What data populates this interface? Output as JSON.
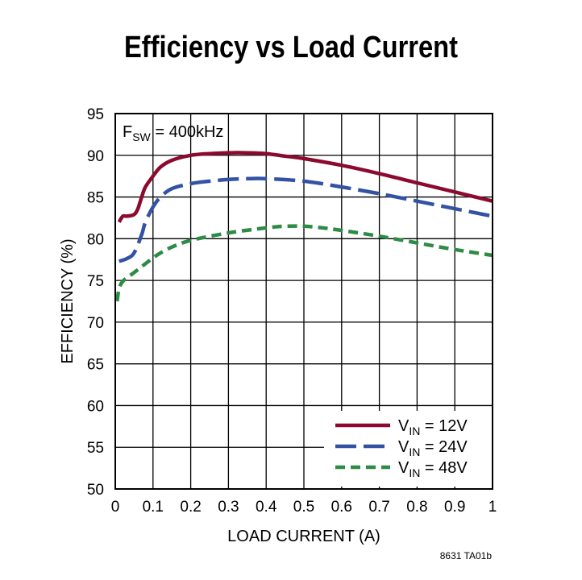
{
  "chart_data": {
    "type": "line",
    "title": "Efficiency vs Load Current",
    "xlabel": "LOAD CURRENT (A)",
    "ylabel": "EFFICIENCY (%)",
    "xlim": [
      0,
      1
    ],
    "ylim": [
      50,
      95
    ],
    "x_ticks": [
      "0",
      "0.1",
      "0.2",
      "0.3",
      "0.4",
      "0.5",
      "0.6",
      "0.7",
      "0.8",
      "0.9",
      "1"
    ],
    "y_ticks": [
      "95",
      "90",
      "85",
      "80",
      "75",
      "70",
      "65",
      "60",
      "55",
      "50"
    ],
    "grid": true,
    "annotation": {
      "main": "F",
      "sub": "SW",
      "rest": " = 400kHz"
    },
    "legend_position": "bottom-right",
    "series": [
      {
        "name": "VIN = 12V",
        "label_main": "V",
        "label_sub": "IN",
        "label_rest": " = 12V",
        "color": "#8b0a2e",
        "dash": "solid",
        "x": [
          0.01,
          0.02,
          0.03,
          0.05,
          0.06,
          0.07,
          0.08,
          0.1,
          0.12,
          0.15,
          0.2,
          0.25,
          0.3,
          0.35,
          0.4,
          0.45,
          0.5,
          0.6,
          0.7,
          0.8,
          0.9,
          1.0
        ],
        "values": [
          82.0,
          82.7,
          82.7,
          82.9,
          83.6,
          85.0,
          86.2,
          87.5,
          88.6,
          89.4,
          90.0,
          90.2,
          90.3,
          90.3,
          90.2,
          89.9,
          89.6,
          88.8,
          87.8,
          86.7,
          85.6,
          84.5
        ]
      },
      {
        "name": "VIN = 24V",
        "label_main": "V",
        "label_sub": "IN",
        "label_rest": " = 24V",
        "color": "#3352a4",
        "dash": "long-dash",
        "x": [
          0.01,
          0.03,
          0.05,
          0.07,
          0.08,
          0.1,
          0.12,
          0.15,
          0.2,
          0.25,
          0.3,
          0.35,
          0.4,
          0.5,
          0.6,
          0.7,
          0.8,
          0.9,
          1.0
        ],
        "values": [
          77.3,
          77.6,
          78.3,
          80.5,
          82.0,
          83.8,
          85.0,
          86.0,
          86.6,
          86.9,
          87.1,
          87.2,
          87.2,
          86.9,
          86.2,
          85.4,
          84.5,
          83.6,
          82.7
        ]
      },
      {
        "name": "VIN = 48V",
        "label_main": "V",
        "label_sub": "IN",
        "label_rest": " = 48V",
        "color": "#2e8b45",
        "dash": "short-dash",
        "x": [
          0.005,
          0.01,
          0.02,
          0.04,
          0.06,
          0.08,
          0.1,
          0.12,
          0.15,
          0.2,
          0.3,
          0.4,
          0.45,
          0.5,
          0.55,
          0.6,
          0.7,
          0.8,
          0.9,
          1.0
        ],
        "values": [
          72.5,
          74.0,
          74.9,
          75.6,
          76.3,
          77.0,
          77.7,
          78.3,
          79.0,
          79.8,
          80.7,
          81.3,
          81.5,
          81.5,
          81.3,
          81.0,
          80.3,
          79.5,
          78.7,
          78.0
        ]
      }
    ]
  },
  "figure_code": "8631 TA01b"
}
